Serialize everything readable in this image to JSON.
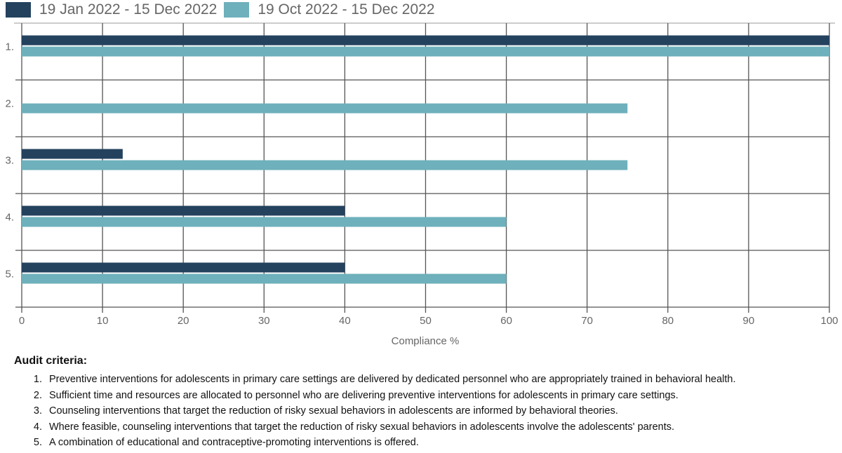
{
  "chart_data": {
    "type": "bar",
    "orientation": "horizontal",
    "categories": [
      "1.",
      "2.",
      "3.",
      "4.",
      "5."
    ],
    "series": [
      {
        "name": "19 Jan 2022 - 15 Dec 2022",
        "color": "#24425e",
        "values": [
          100,
          0,
          12.5,
          40,
          40
        ]
      },
      {
        "name": "19 Oct 2022 - 15 Dec 2022",
        "color": "#6eb0bb",
        "values": [
          100,
          75,
          75,
          60,
          60
        ]
      }
    ],
    "xlabel": "Compliance %",
    "xlim": [
      0,
      100
    ],
    "xticks": [
      0,
      10,
      20,
      30,
      40,
      50,
      60,
      70,
      80,
      90,
      100
    ],
    "grid": true,
    "legend": "top-left"
  },
  "criteria": {
    "title": "Audit criteria:",
    "items": [
      "Preventive interventions for adolescents in primary care settings are delivered by dedicated personnel who are appropriately trained in behavioral health.",
      "Sufficient time and resources are allocated to personnel who are delivering preventive interventions for adolescents in primary care settings.",
      "Counseling interventions that target the reduction of risky sexual behaviors in adolescents are informed by behavioral theories.",
      "Where feasible, counseling interventions that target the reduction of risky sexual behaviors in adolescents involve the  adolescents' parents.",
      "A combination of educational and contraceptive-promoting interventions is offered."
    ]
  }
}
